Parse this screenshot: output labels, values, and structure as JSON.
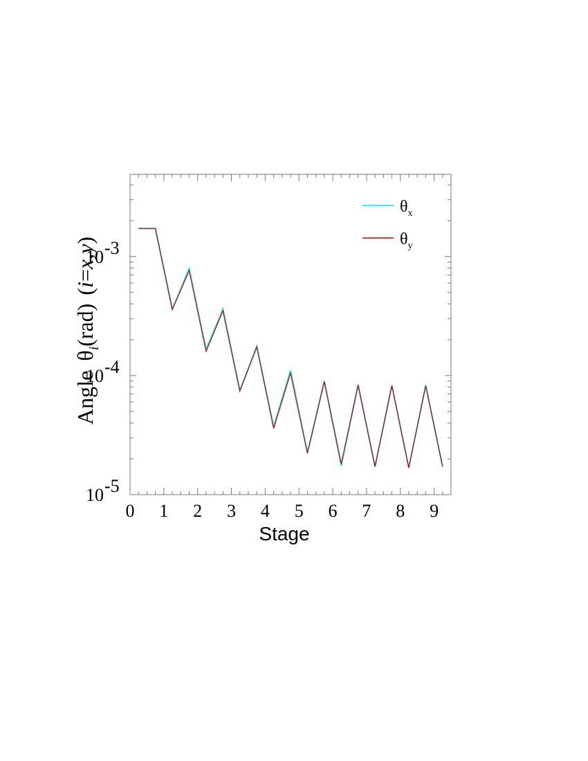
{
  "chart_data": {
    "type": "line",
    "xlabel": "Stage",
    "ylabel": {
      "prefix": "Angle",
      "symbol": "θ",
      "symbol_sub": "i",
      "unit": "(rad)",
      "paren_open": "(",
      "var_i": "i",
      "eq": "=",
      "var_xy": "x,y",
      "paren_close": ")"
    },
    "x_ticks": [
      "0",
      "1",
      "2",
      "3",
      "4",
      "5",
      "6",
      "7",
      "8",
      "9"
    ],
    "y_ticks": [
      {
        "value": 1e-05,
        "base": "10",
        "exp": "-5"
      },
      {
        "value": 0.0001,
        "base": "10",
        "exp": "-4"
      },
      {
        "value": 0.001,
        "base": "10",
        "exp": "-3"
      }
    ],
    "xlim": [
      0,
      9.5
    ],
    "ylim": [
      1e-05,
      0.0049
    ],
    "yscale": "log",
    "grid": false,
    "legend_position": "top-right",
    "series": [
      {
        "name": {
          "symbol": "θ",
          "sub": "x"
        },
        "color": "#00e5ee",
        "x": [
          0.25,
          0.75,
          1.25,
          1.75,
          2.25,
          2.75,
          3.25,
          3.75,
          4.25,
          4.75,
          5.25,
          5.75,
          6.25,
          6.75,
          7.25,
          7.75,
          8.25,
          8.75,
          9.25
        ],
        "y": [
          0.00172,
          0.00172,
          0.00036,
          0.00079,
          0.000165,
          0.00036,
          7.5e-05,
          0.000176,
          3.7e-05,
          0.00011,
          2.25e-05,
          9e-05,
          1.75e-05,
          8.4e-05,
          1.72e-05,
          8.3e-05,
          1.68e-05,
          8.3e-05,
          1.72e-05
        ]
      },
      {
        "name": {
          "symbol": "θ",
          "sub": "y"
        },
        "color": "#cc0000",
        "x": [
          0.25,
          0.75,
          1.25,
          1.75,
          2.25,
          2.75,
          3.25,
          3.75,
          4.25,
          4.75,
          5.25,
          5.75,
          6.25,
          6.75,
          7.25,
          7.75,
          8.25,
          8.75,
          9.25
        ],
        "y": [
          0.00172,
          0.00172,
          0.00036,
          0.00076,
          0.00016,
          0.00035,
          7.4e-05,
          0.000174,
          3.6e-05,
          0.000105,
          2.22e-05,
          8.9e-05,
          1.82e-05,
          8.3e-05,
          1.72e-05,
          8.2e-05,
          1.68e-05,
          8.2e-05,
          1.72e-05
        ]
      }
    ]
  }
}
